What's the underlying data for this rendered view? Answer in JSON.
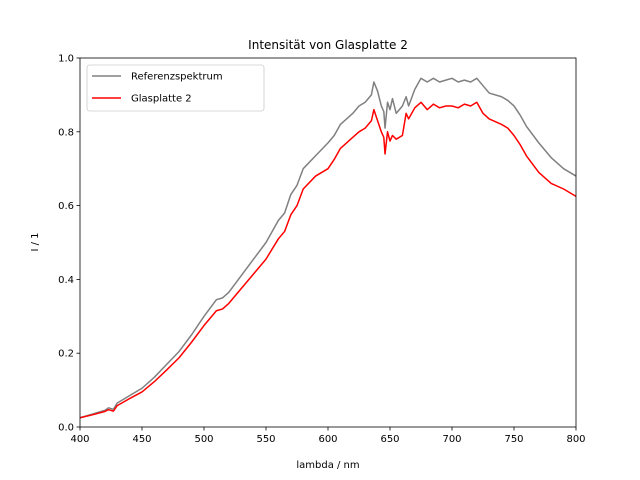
{
  "chart_data": {
    "type": "line",
    "title": "Intensität von Glasplatte 2",
    "xlabel": "lambda / nm",
    "ylabel": "I / 1",
    "xlim": [
      400,
      800
    ],
    "ylim": [
      0.0,
      1.0
    ],
    "xticks": [
      "400",
      "450",
      "500",
      "550",
      "600",
      "650",
      "700",
      "750",
      "800"
    ],
    "yticks": [
      "0.0",
      "0.2",
      "0.4",
      "0.6",
      "0.8",
      "1.0"
    ],
    "grid": false,
    "legend_position": "top-left",
    "series": [
      {
        "name": "Referenzspektrum",
        "color": "#808080",
        "x": [
          400,
          410,
          420,
          423,
          427,
          430,
          440,
          450,
          460,
          470,
          480,
          490,
          500,
          510,
          515,
          520,
          530,
          540,
          550,
          560,
          565,
          570,
          575,
          580,
          590,
          600,
          605,
          610,
          620,
          625,
          630,
          635,
          637,
          640,
          643,
          645,
          646,
          648,
          650,
          652,
          655,
          660,
          663,
          665,
          670,
          675,
          680,
          685,
          690,
          695,
          700,
          705,
          710,
          715,
          720,
          725,
          730,
          740,
          745,
          750,
          755,
          760,
          770,
          780,
          790,
          800
        ],
        "y": [
          0.025,
          0.035,
          0.045,
          0.052,
          0.048,
          0.065,
          0.085,
          0.105,
          0.135,
          0.17,
          0.205,
          0.25,
          0.3,
          0.345,
          0.35,
          0.365,
          0.41,
          0.455,
          0.5,
          0.56,
          0.58,
          0.63,
          0.655,
          0.7,
          0.735,
          0.77,
          0.79,
          0.82,
          0.85,
          0.87,
          0.88,
          0.9,
          0.935,
          0.91,
          0.87,
          0.855,
          0.81,
          0.88,
          0.86,
          0.89,
          0.85,
          0.87,
          0.895,
          0.87,
          0.915,
          0.945,
          0.935,
          0.945,
          0.935,
          0.94,
          0.945,
          0.935,
          0.94,
          0.935,
          0.945,
          0.925,
          0.905,
          0.895,
          0.885,
          0.87,
          0.845,
          0.815,
          0.77,
          0.73,
          0.7,
          0.68
        ]
      },
      {
        "name": "Glasplatte 2",
        "color": "#ff0000",
        "x": [
          400,
          410,
          420,
          423,
          427,
          430,
          440,
          450,
          460,
          470,
          480,
          490,
          500,
          510,
          515,
          520,
          530,
          540,
          550,
          560,
          565,
          570,
          575,
          580,
          590,
          600,
          605,
          610,
          620,
          625,
          630,
          635,
          637,
          640,
          643,
          645,
          646,
          648,
          650,
          652,
          655,
          660,
          663,
          665,
          670,
          675,
          680,
          685,
          690,
          695,
          700,
          705,
          710,
          715,
          720,
          725,
          730,
          740,
          745,
          750,
          755,
          760,
          770,
          780,
          790,
          800
        ],
        "y": [
          0.025,
          0.033,
          0.042,
          0.047,
          0.043,
          0.058,
          0.077,
          0.095,
          0.123,
          0.155,
          0.188,
          0.23,
          0.275,
          0.315,
          0.32,
          0.335,
          0.375,
          0.415,
          0.455,
          0.51,
          0.53,
          0.575,
          0.6,
          0.645,
          0.68,
          0.7,
          0.725,
          0.755,
          0.785,
          0.8,
          0.81,
          0.83,
          0.86,
          0.83,
          0.8,
          0.785,
          0.74,
          0.8,
          0.775,
          0.79,
          0.78,
          0.79,
          0.85,
          0.835,
          0.865,
          0.88,
          0.86,
          0.875,
          0.865,
          0.87,
          0.87,
          0.865,
          0.875,
          0.87,
          0.88,
          0.85,
          0.835,
          0.82,
          0.81,
          0.79,
          0.765,
          0.735,
          0.69,
          0.66,
          0.645,
          0.625
        ]
      }
    ]
  }
}
